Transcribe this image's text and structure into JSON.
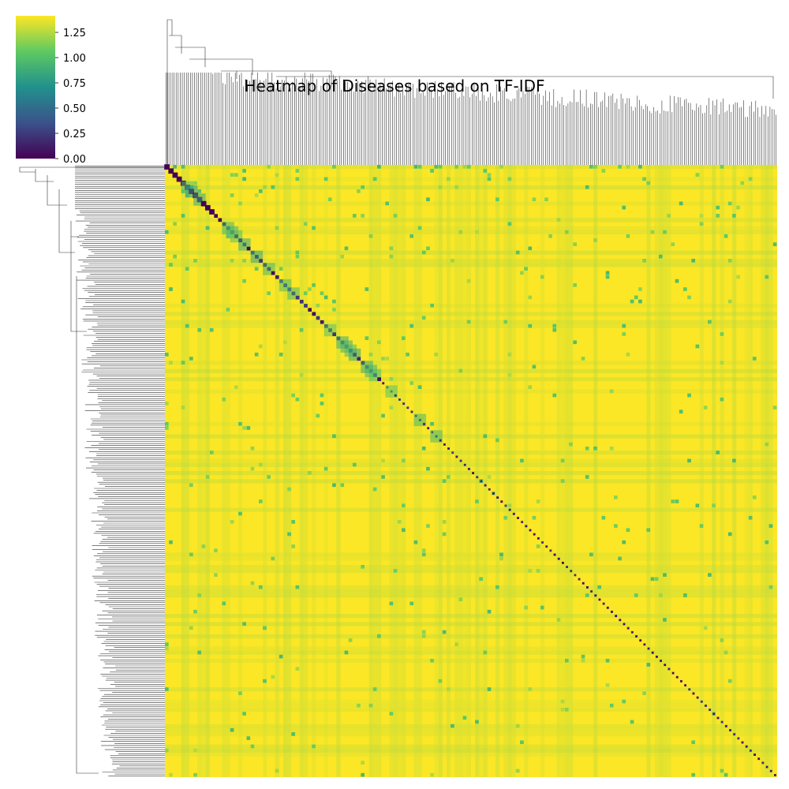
{
  "chart_data": {
    "type": "heatmap",
    "title": "Heatmap of Diseases based on TF-IDF",
    "xlabel": "",
    "ylabel": "",
    "row_labels_shown": false,
    "col_labels_shown": false,
    "n_rows_approx": 400,
    "n_cols_approx": 400,
    "clustered": true,
    "dendrograms": [
      "top",
      "left"
    ],
    "colormap": "viridis",
    "colormap_stops": [
      "#440154",
      "#3b528b",
      "#21918c",
      "#5ec962",
      "#fde725"
    ],
    "colorbar": {
      "placement": "top-left",
      "range": [
        0.0,
        1.4142
      ],
      "ticks": [
        0.0,
        0.25,
        0.5,
        0.75,
        1.0,
        1.25
      ],
      "tick_labels": [
        "0.00",
        "0.25",
        "0.50",
        "0.75",
        "1.00",
        "1.25"
      ]
    },
    "value_summary": {
      "diagonal": 0.0,
      "typical_off_diagonal": 1.41,
      "min": 0.0,
      "max": 1.41
    }
  }
}
